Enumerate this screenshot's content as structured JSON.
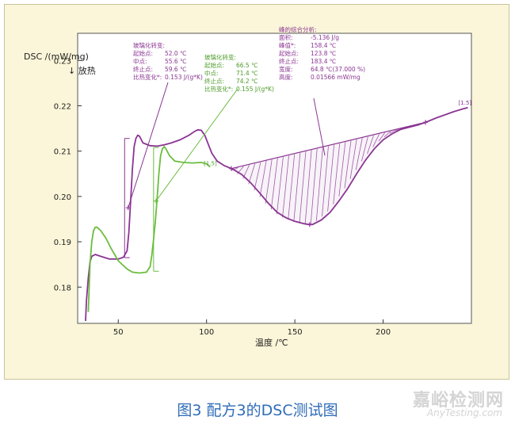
{
  "chart_data": {
    "type": "line",
    "ylabel": "DSC /(mW/mg)",
    "exo_label": "↓ 放热",
    "xlabel": "温度 /℃",
    "xlim": [
      27,
      250
    ],
    "ylim": [
      0.172,
      0.236
    ],
    "x_ticks": [
      50,
      100,
      150,
      200
    ],
    "x_tick_labels": [
      "50",
      "100",
      "150",
      "200"
    ],
    "y_ticks": [
      0.18,
      0.19,
      0.2,
      0.21,
      0.22,
      0.23
    ],
    "y_tick_labels": [
      "0.18",
      "0.19",
      "0.20",
      "0.21",
      "0.22",
      "0.23"
    ],
    "series": [
      {
        "color": "#8a3592",
        "points": [
          [
            31.5,
            0.1725
          ],
          [
            32,
            0.177
          ],
          [
            33,
            0.182
          ],
          [
            34,
            0.1855
          ],
          [
            35,
            0.1868
          ],
          [
            37,
            0.1872
          ],
          [
            40,
            0.1868
          ],
          [
            45,
            0.1862
          ],
          [
            50,
            0.1862
          ],
          [
            53,
            0.1866
          ],
          [
            55,
            0.188
          ],
          [
            56,
            0.192
          ],
          [
            57,
            0.199
          ],
          [
            58,
            0.206
          ],
          [
            59,
            0.211
          ],
          [
            60,
            0.2128
          ],
          [
            61,
            0.2135
          ],
          [
            62,
            0.2133
          ],
          [
            64,
            0.2118
          ],
          [
            68,
            0.2112
          ],
          [
            72,
            0.2111
          ],
          [
            76,
            0.2114
          ],
          [
            80,
            0.2118
          ],
          [
            85,
            0.2125
          ],
          [
            90,
            0.2135
          ],
          [
            93,
            0.2143
          ],
          [
            95,
            0.2147
          ],
          [
            97,
            0.2146
          ],
          [
            99,
            0.2135
          ],
          [
            101,
            0.2115
          ],
          [
            103,
            0.2095
          ],
          [
            106,
            0.2078
          ],
          [
            110,
            0.2068
          ],
          [
            115,
            0.206
          ],
          [
            120,
            0.2048
          ],
          [
            125,
            0.203
          ],
          [
            130,
            0.2008
          ],
          [
            135,
            0.1985
          ],
          [
            140,
            0.1965
          ],
          [
            145,
            0.1953
          ],
          [
            150,
            0.1945
          ],
          [
            155,
            0.194
          ],
          [
            158,
            0.1938
          ],
          [
            160,
            0.1938
          ],
          [
            165,
            0.1948
          ],
          [
            170,
            0.1965
          ],
          [
            175,
            0.199
          ],
          [
            180,
            0.2018
          ],
          [
            185,
            0.205
          ],
          [
            190,
            0.208
          ],
          [
            195,
            0.2105
          ],
          [
            200,
            0.2125
          ],
          [
            205,
            0.2138
          ],
          [
            210,
            0.2148
          ],
          [
            215,
            0.2153
          ],
          [
            220,
            0.2158
          ],
          [
            225,
            0.2165
          ],
          [
            230,
            0.2173
          ],
          [
            235,
            0.218
          ],
          [
            240,
            0.2187
          ],
          [
            245,
            0.2193
          ],
          [
            248,
            0.2196
          ]
        ]
      },
      {
        "color": "#6bbd3e",
        "points": [
          [
            33,
            0.1745
          ],
          [
            34,
            0.185
          ],
          [
            35,
            0.19
          ],
          [
            36,
            0.1925
          ],
          [
            37,
            0.1932
          ],
          [
            38,
            0.1932
          ],
          [
            40,
            0.1925
          ],
          [
            43,
            0.1908
          ],
          [
            46,
            0.1885
          ],
          [
            50,
            0.1858
          ],
          [
            55,
            0.184
          ],
          [
            58,
            0.1833
          ],
          [
            62,
            0.1831
          ],
          [
            66,
            0.1833
          ],
          [
            68,
            0.1845
          ],
          [
            69,
            0.187
          ],
          [
            70,
            0.1905
          ],
          [
            71,
            0.1945
          ],
          [
            72,
            0.1995
          ],
          [
            73,
            0.205
          ],
          [
            74,
            0.209
          ],
          [
            75,
            0.2105
          ],
          [
            76,
            0.211
          ],
          [
            77,
            0.2105
          ],
          [
            79,
            0.209
          ],
          [
            82,
            0.2078
          ],
          [
            87,
            0.2075
          ],
          [
            92,
            0.2074
          ],
          [
            97,
            0.2075
          ],
          [
            100,
            0.2072
          ],
          [
            102,
            0.2065
          ]
        ]
      }
    ],
    "annotations": {
      "purple_glass": {
        "title": "玻璃化转变:",
        "rows": [
          [
            "起始点:",
            "52.0 ℃"
          ],
          [
            "中点:",
            "55.6 ℃"
          ],
          [
            "终止点:",
            "59.6 ℃"
          ],
          [
            "比热变化*:",
            "0.153 J/(g*K)"
          ]
        ]
      },
      "green_glass": {
        "title": "玻璃化转变:",
        "rows": [
          [
            "起始点:",
            "66.5 ℃"
          ],
          [
            "中点:",
            "71.4 ℃"
          ],
          [
            "终止点:",
            "74.2 ℃"
          ],
          [
            "比热变化*:",
            "0.155 J/(g*K)"
          ]
        ]
      },
      "peak": {
        "title": "峰的综合分析:",
        "rows": [
          [
            "面积:",
            "-5.136 J/g"
          ],
          [
            "峰值*:",
            "158.4 ℃"
          ],
          [
            "起始点:",
            "123.8 ℃"
          ],
          [
            "终止点:",
            "183.4 ℃"
          ],
          [
            "宽度:",
            "64.8 ℃(37.000 %)"
          ],
          [
            "高度:",
            "0.01566 mW/mg"
          ]
        ]
      },
      "end_label_purple": "[1.5]",
      "end_label_green": "[1.5]"
    }
  },
  "caption": "图3 配方3的DSC测试图",
  "watermark": {
    "cn": "嘉峪检测网",
    "en": "AnyTesting.com"
  }
}
